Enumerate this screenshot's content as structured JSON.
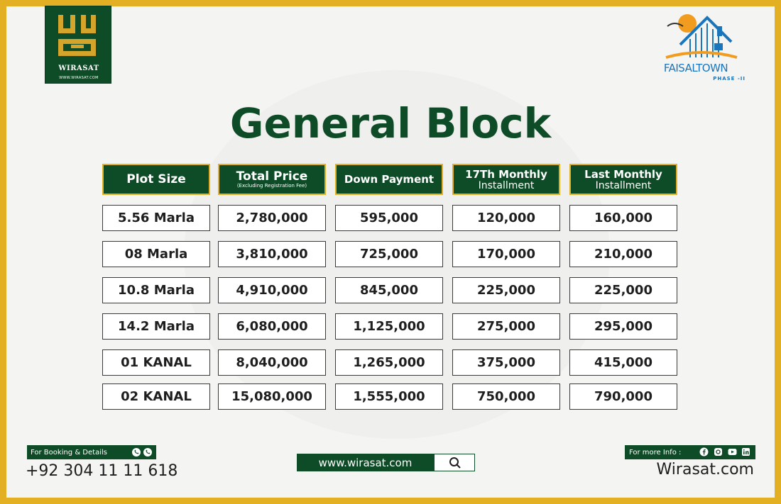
{
  "brand_left": {
    "name": "WIRASAT",
    "url": "WWW.WIRASAT.COM"
  },
  "brand_right": {
    "name": "FAISALTOWN",
    "phase": "PHASE -II"
  },
  "title": "General Block",
  "table": {
    "headers": [
      {
        "main": "Plot Size",
        "sub": ""
      },
      {
        "main": "Total Price",
        "sub": "(Excluding Registration Fee)"
      },
      {
        "main": "Down Payment",
        "sub": ""
      },
      {
        "main": "17Th Monthly",
        "sub": "Installment"
      },
      {
        "main": "Last Monthly",
        "sub": "Installment"
      }
    ],
    "rows": [
      [
        "5.56 Marla",
        "2,780,000",
        "595,000",
        "120,000",
        "160,000"
      ],
      [
        "08 Marla",
        "3,810,000",
        "725,000",
        "170,000",
        "210,000"
      ],
      [
        "10.8 Marla",
        "4,910,000",
        "845,000",
        "225,000",
        "225,000"
      ],
      [
        "14.2 Marla",
        "6,080,000",
        "1,125,000",
        "275,000",
        "295,000"
      ],
      [
        "01 KANAL",
        "8,040,000",
        "1,265,000",
        "375,000",
        "415,000"
      ],
      [
        "02 KANAL",
        "15,080,000",
        "1,555,000",
        "750,000",
        "790,000"
      ]
    ]
  },
  "footer": {
    "booking_label": "For Booking & Details",
    "phone": "+92 304 11 11 618",
    "website_bar": "www.wirasat.com",
    "more_info_label": "For more Info :",
    "site": "Wirasat.com"
  },
  "colors": {
    "green": "#0d4c26",
    "gold": "#e3b023",
    "blue": "#1b75bb",
    "orange": "#f29c1f"
  },
  "icons": [
    "whatsapp-icon",
    "phone-icon",
    "search-icon",
    "facebook-icon",
    "instagram-icon",
    "youtube-icon",
    "linkedin-icon"
  ]
}
